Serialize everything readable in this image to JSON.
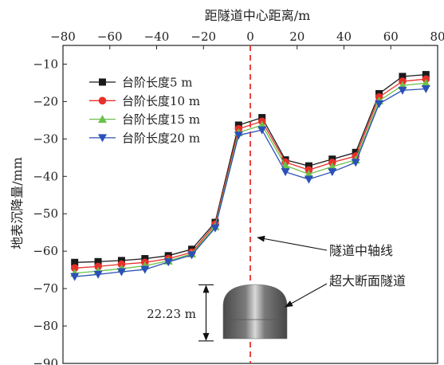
{
  "chart_data": {
    "type": "line",
    "xlabel": "距隧道中心距离/m",
    "ylabel": "地表沉降量/mm",
    "x_axis_position": "top",
    "xlim": [
      -80,
      80
    ],
    "ylim": [
      -90,
      -5
    ],
    "xticks": [
      -80,
      -60,
      -40,
      -20,
      0,
      20,
      40,
      60,
      80
    ],
    "yticks": [
      -10,
      -20,
      -30,
      -40,
      -50,
      -60,
      -70,
      -80,
      -90
    ],
    "grid": false,
    "legend_position": "top-left",
    "x": [
      -75,
      -65,
      -55,
      -45,
      -35,
      -25,
      -15,
      -5,
      5,
      15,
      25,
      35,
      45,
      55,
      65,
      75
    ],
    "series": [
      {
        "name": "台阶长度5 m",
        "color": "#1a1a1a",
        "marker": "square",
        "values": [
          -63.0,
          -62.8,
          -62.5,
          -62.0,
          -61.2,
          -59.5,
          -52.3,
          -26.3,
          -24.3,
          -35.6,
          -37.2,
          -35.4,
          -33.6,
          -17.9,
          -13.3,
          -12.8
        ]
      },
      {
        "name": "台阶长度10 m",
        "color": "#e8302a",
        "marker": "circle",
        "values": [
          -64.5,
          -64.1,
          -63.5,
          -63.0,
          -62.0,
          -60.3,
          -52.8,
          -27.3,
          -25.3,
          -36.2,
          -38.3,
          -36.3,
          -34.6,
          -18.8,
          -14.6,
          -14.0
        ]
      },
      {
        "name": "台阶长度15 m",
        "color": "#6cc04a",
        "marker": "triangle-up",
        "values": [
          -65.9,
          -65.3,
          -64.7,
          -63.9,
          -62.6,
          -60.7,
          -53.4,
          -28.3,
          -26.3,
          -37.1,
          -39.4,
          -37.4,
          -35.6,
          -19.8,
          -15.7,
          -15.1
        ]
      },
      {
        "name": "台阶长度20 m",
        "color": "#2b50b8",
        "marker": "triangle-down",
        "values": [
          -66.8,
          -66.2,
          -65.5,
          -64.9,
          -62.9,
          -61.0,
          -53.8,
          -29.0,
          -27.6,
          -38.8,
          -40.8,
          -38.8,
          -36.3,
          -20.6,
          -17.0,
          -16.6
        ]
      }
    ],
    "annotations": {
      "axis_label": "隧道中轴线",
      "tunnel_label": "超大断面隧道",
      "depth_label": "22.23 m",
      "depth_top_y": -69,
      "depth_bottom_y": -84,
      "axis_line_color": "#e8302a"
    }
  }
}
